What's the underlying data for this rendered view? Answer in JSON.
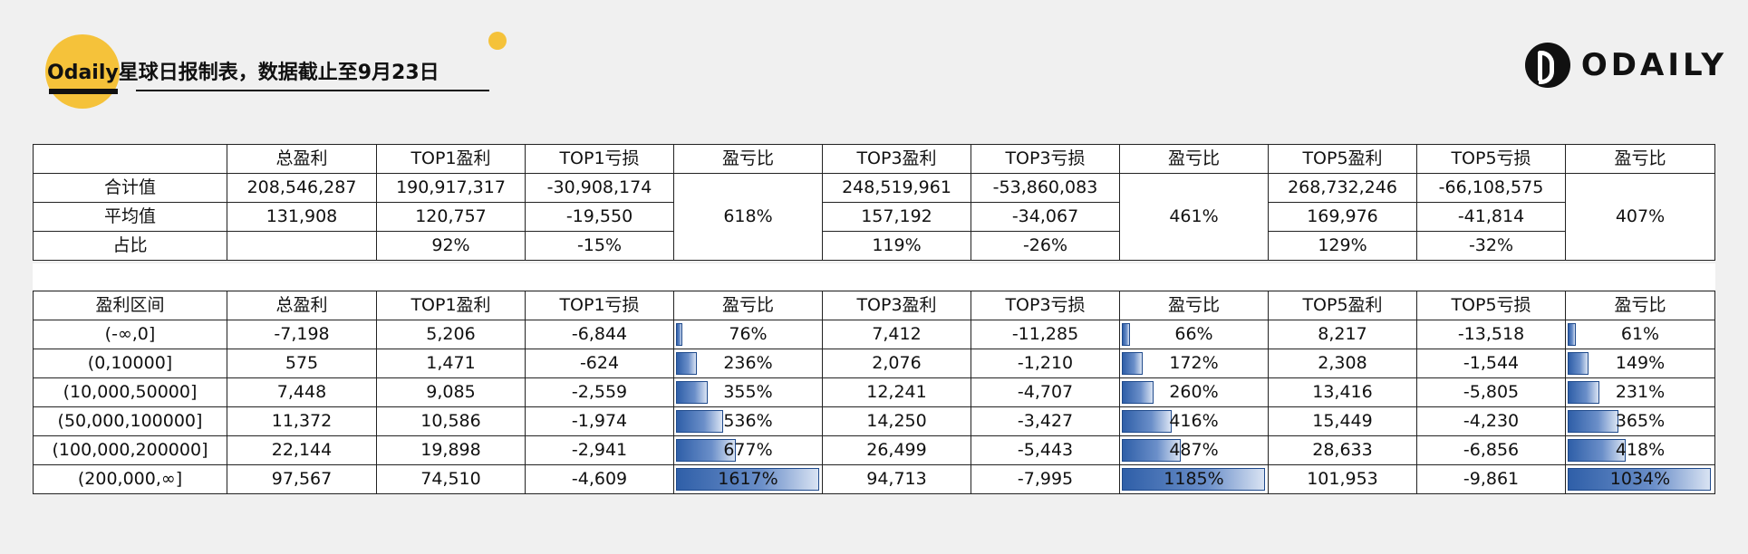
{
  "header": {
    "title": "Odaily星球日报制表，数据截止至9月23日",
    "logo_text": "ODAILY"
  },
  "summary_table": {
    "headers": [
      "",
      "总盈利",
      "TOP1盈利",
      "TOP1亏损",
      "盈亏比",
      "TOP3盈利",
      "TOP3亏损",
      "盈亏比",
      "TOP5盈利",
      "TOP5亏损",
      "盈亏比"
    ],
    "rows": [
      {
        "label": "合计值",
        "total": "208,546,287",
        "top1_profit": "190,917,317",
        "top1_loss": "-30,908,174",
        "top3_profit": "248,519,961",
        "top3_loss": "-53,860,083",
        "top5_profit": "268,732,246",
        "top5_loss": "-66,108,575"
      },
      {
        "label": "平均值",
        "total": "131,908",
        "top1_profit": "120,757",
        "top1_loss": "-19,550",
        "top3_profit": "157,192",
        "top3_loss": "-34,067",
        "top5_profit": "169,976",
        "top5_loss": "-41,814"
      },
      {
        "label": "占比",
        "total": "",
        "top1_profit": "92%",
        "top1_loss": "-15%",
        "top3_profit": "119%",
        "top3_loss": "-26%",
        "top5_profit": "129%",
        "top5_loss": "-32%"
      }
    ],
    "ratio_top1": "618%",
    "ratio_top3": "461%",
    "ratio_top5": "407%"
  },
  "range_table": {
    "headers": [
      "盈利区间",
      "总盈利",
      "TOP1盈利",
      "TOP1亏损",
      "盈亏比",
      "TOP3盈利",
      "TOP3亏损",
      "盈亏比",
      "TOP5盈利",
      "TOP5亏损",
      "盈亏比"
    ],
    "rows": [
      {
        "range": "(-∞,0]",
        "total": "-7,198",
        "top1_profit": "5,206",
        "top1_loss": "-6,844",
        "ratio1": "76%",
        "top3_profit": "7,412",
        "top3_loss": "-11,285",
        "ratio3": "66%",
        "top5_profit": "8,217",
        "top5_loss": "-13,518",
        "ratio5": "61%"
      },
      {
        "range": "(0,10000]",
        "total": "575",
        "top1_profit": "1,471",
        "top1_loss": "-624",
        "ratio1": "236%",
        "top3_profit": "2,076",
        "top3_loss": "-1,210",
        "ratio3": "172%",
        "top5_profit": "2,308",
        "top5_loss": "-1,544",
        "ratio5": "149%"
      },
      {
        "range": "(10,000,50000]",
        "total": "7,448",
        "top1_profit": "9,085",
        "top1_loss": "-2,559",
        "ratio1": "355%",
        "top3_profit": "12,241",
        "top3_loss": "-4,707",
        "ratio3": "260%",
        "top5_profit": "13,416",
        "top5_loss": "-5,805",
        "ratio5": "231%"
      },
      {
        "range": "(50,000,100000]",
        "total": "11,372",
        "top1_profit": "10,586",
        "top1_loss": "-1,974",
        "ratio1": "536%",
        "top3_profit": "14,250",
        "top3_loss": "-3,427",
        "ratio3": "416%",
        "top5_profit": "15,449",
        "top5_loss": "-4,230",
        "ratio5": "365%"
      },
      {
        "range": "(100,000,200000]",
        "total": "22,144",
        "top1_profit": "19,898",
        "top1_loss": "-2,941",
        "ratio1": "677%",
        "top3_profit": "26,499",
        "top3_loss": "-5,443",
        "ratio3": "487%",
        "top5_profit": "28,633",
        "top5_loss": "-6,856",
        "ratio5": "418%"
      },
      {
        "range": "(200,000,∞]",
        "total": "97,567",
        "top1_profit": "74,510",
        "top1_loss": "-4,609",
        "ratio1": "1617%",
        "top3_profit": "94,713",
        "top3_loss": "-7,995",
        "ratio3": "1185%",
        "top5_profit": "101,953",
        "top5_loss": "-9,861",
        "ratio5": "1034%"
      }
    ],
    "bar_fill": {
      "ratio1": [
        0.047,
        0.146,
        0.22,
        0.331,
        0.419,
        1.0
      ],
      "ratio3": [
        0.056,
        0.145,
        0.219,
        0.351,
        0.411,
        1.0
      ],
      "ratio5": [
        0.059,
        0.144,
        0.223,
        0.353,
        0.404,
        1.0
      ]
    },
    "bar_color": "#2f5fa8"
  }
}
